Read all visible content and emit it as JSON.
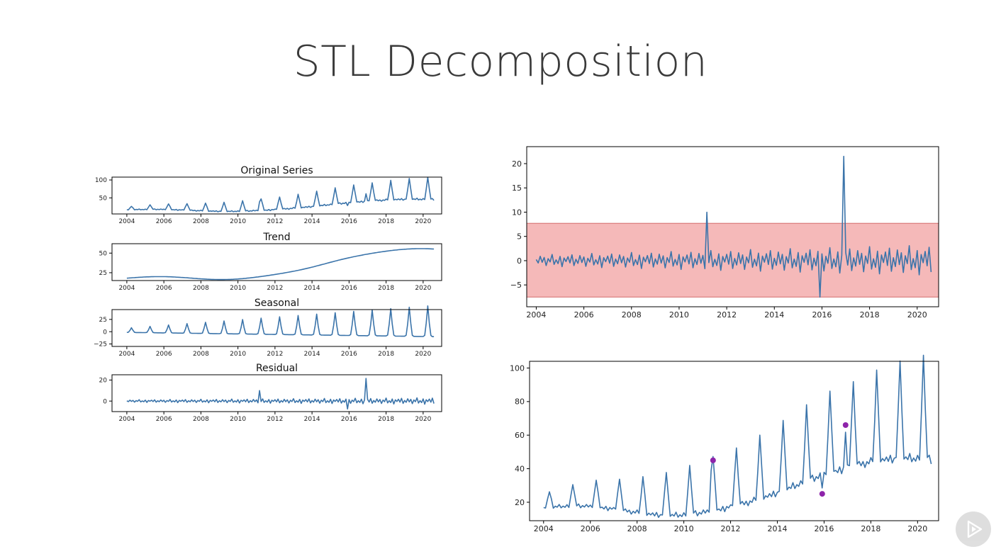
{
  "slide": {
    "title": "STL Decomposition"
  },
  "colors": {
    "line": "#3b74aa",
    "band": "#f2a8a8",
    "band_edge": "#d36b6b",
    "outlier": "#8e24aa"
  },
  "icons": {
    "play": "play-triangle-icon"
  },
  "chart_data": [
    {
      "id": "original",
      "type": "line",
      "title": "Original Series",
      "x_ticks": [
        2004,
        2006,
        2008,
        2010,
        2012,
        2014,
        2016,
        2018,
        2020
      ],
      "y_ticks": [
        50,
        100
      ],
      "xlim": [
        2003.2,
        2021.0
      ],
      "ylim": [
        5,
        108
      ],
      "series": [
        {
          "values": []
        }
      ]
    },
    {
      "id": "trend",
      "type": "line",
      "title": "Trend",
      "x_ticks": [
        2004,
        2006,
        2008,
        2010,
        2012,
        2014,
        2016,
        2018,
        2020
      ],
      "y_ticks": [
        25,
        50
      ],
      "xlim": [
        2003.2,
        2021.0
      ],
      "ylim": [
        15,
        62
      ],
      "series": [
        {
          "values": []
        }
      ]
    },
    {
      "id": "seasonal",
      "type": "line",
      "title": "Seasonal",
      "x_ticks": [
        2004,
        2006,
        2008,
        2010,
        2012,
        2014,
        2016,
        2018,
        2020
      ],
      "y_ticks": [
        -25,
        0,
        25
      ],
      "xlim": [
        2003.2,
        2021.0
      ],
      "ylim": [
        -30,
        45
      ],
      "series": [
        {
          "values": []
        }
      ]
    },
    {
      "id": "residual",
      "type": "line",
      "title": "Residual",
      "x_ticks": [
        2004,
        2006,
        2008,
        2010,
        2012,
        2014,
        2016,
        2018,
        2020
      ],
      "y_ticks": [
        0,
        20
      ],
      "xlim": [
        2003.2,
        2021.0
      ],
      "ylim": [
        -10,
        25
      ],
      "series": [
        {
          "values": []
        }
      ]
    },
    {
      "id": "residual-band",
      "type": "line",
      "title": "",
      "x_ticks": [
        2004,
        2006,
        2008,
        2010,
        2012,
        2014,
        2016,
        2018,
        2020
      ],
      "y_ticks": [
        -5,
        0,
        5,
        10,
        15,
        20
      ],
      "xlim": [
        2003.6,
        2020.9
      ],
      "ylim": [
        -9.5,
        23.5
      ],
      "band": [
        -7.5,
        7.7
      ],
      "series": [
        {
          "values": []
        }
      ]
    },
    {
      "id": "anomalies",
      "type": "line",
      "title": "",
      "x_ticks": [
        2004,
        2006,
        2008,
        2010,
        2012,
        2014,
        2016,
        2018,
        2020
      ],
      "y_ticks": [
        20,
        40,
        60,
        80,
        100
      ],
      "xlim": [
        2003.4,
        2020.9
      ],
      "ylim": [
        9,
        104
      ],
      "series": [
        {
          "values": []
        }
      ],
      "outliers": [
        {
          "x": 2011.25,
          "y": 45
        },
        {
          "x": 2015.92,
          "y": 25
        },
        {
          "x": 2016.92,
          "y": 66
        }
      ]
    }
  ]
}
